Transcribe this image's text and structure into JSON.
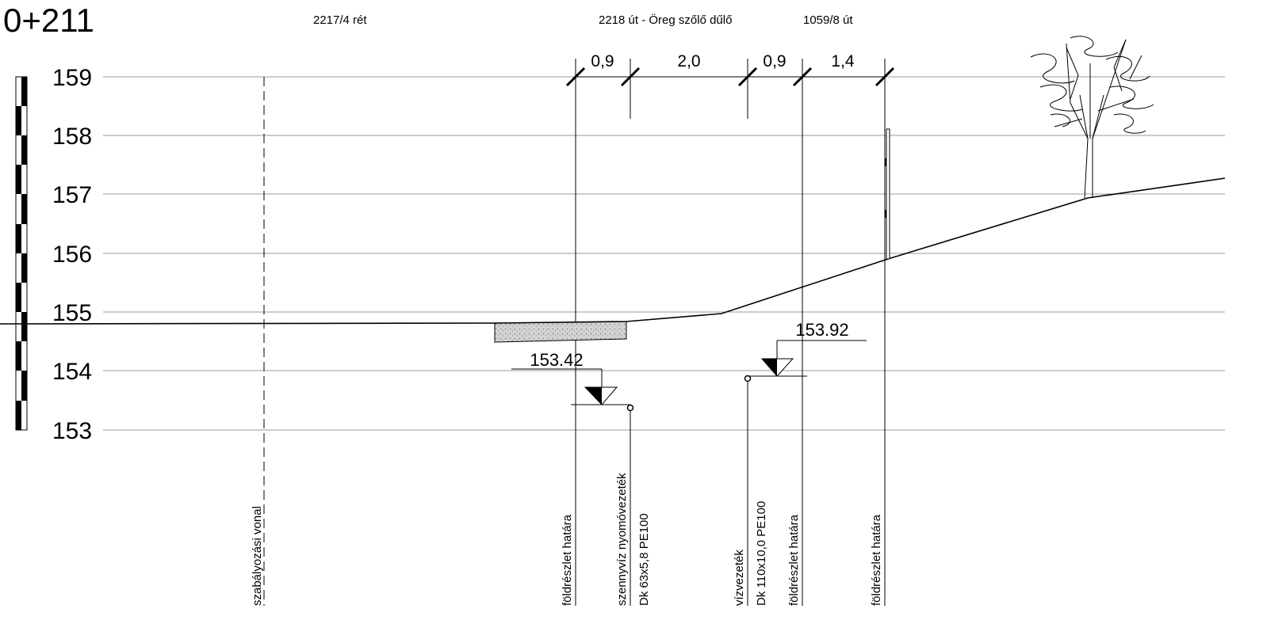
{
  "station": "0+211",
  "parcels": {
    "left": "2217/4 rét",
    "road": "2218 út - Öreg szőlő dűlő",
    "right": "1059/8 út"
  },
  "elevation_labels": [
    "159",
    "158",
    "157",
    "156",
    "155",
    "154",
    "153"
  ],
  "dimensions": [
    "0,9",
    "2,0",
    "0,9",
    "1,4"
  ],
  "pipe_levels": {
    "sewer": "153.42",
    "water": "153.92"
  },
  "vertical_labels": {
    "regulation_line": "szabályozási vonal",
    "parcel_border_1": "földrészlet határa",
    "sewer_pipe_name": "szennyvíz nyomóvezeték",
    "sewer_pipe_spec": "Dk 63x5,8 PE100",
    "water_pipe_name": "vízvezeték",
    "water_pipe_spec": "Dk 110x10,0 PE100",
    "parcel_border_2": "földrészlet határa",
    "parcel_border_3": "földrészlet határa"
  }
}
